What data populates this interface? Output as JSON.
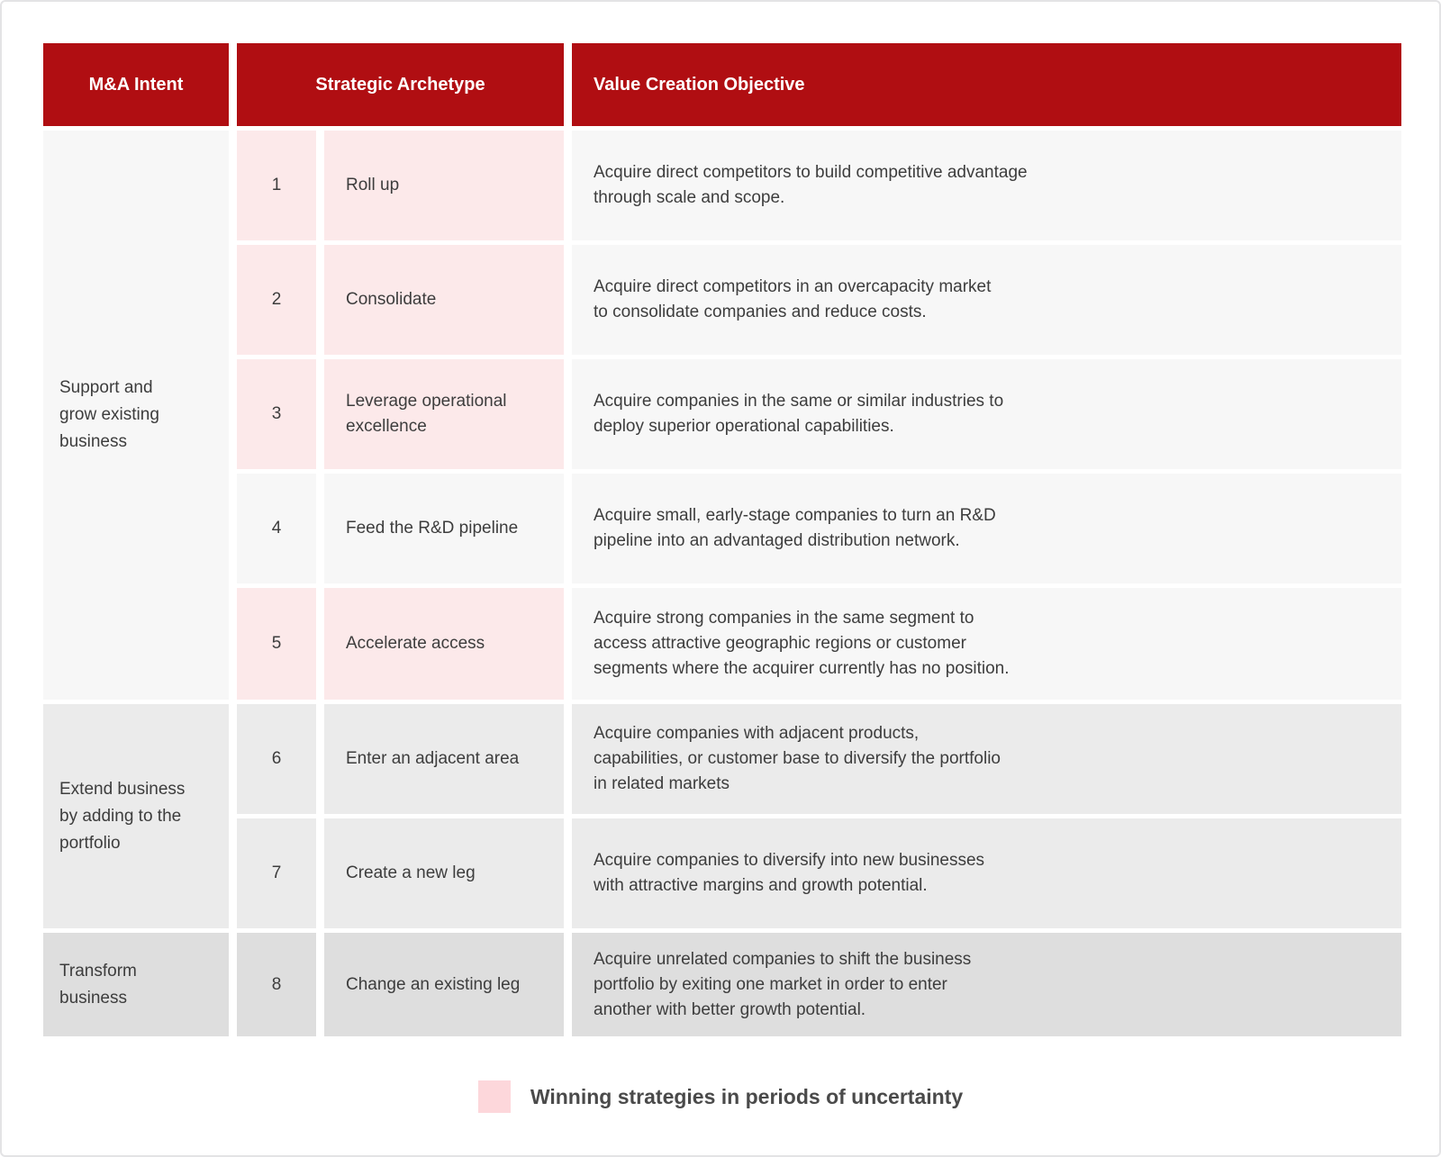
{
  "table": {
    "headers": [
      "M&A Intent",
      "Strategic Archetype",
      "Value Creation Objective"
    ],
    "groups": [
      {
        "label": "Support and\ngrow existing\nbusiness"
      },
      {
        "label": "Extend business\nby adding to the\nportfolio"
      },
      {
        "label": "Transform\nbusiness"
      }
    ],
    "rows": [
      {
        "num": "1",
        "archetype": "Roll up",
        "objective": "Acquire direct competitors to build competitive advantage\nthrough scale and scope.",
        "highlight": true
      },
      {
        "num": "2",
        "archetype": "Consolidate",
        "objective": "Acquire direct competitors in an overcapacity market\nto consolidate companies and reduce costs.",
        "highlight": true
      },
      {
        "num": "3",
        "archetype": "Leverage operational\nexcellence",
        "objective": "Acquire companies in the same or similar industries to\ndeploy superior operational capabilities.",
        "highlight": true
      },
      {
        "num": "4",
        "archetype": "Feed the R&D pipeline",
        "objective": "Acquire small, early-stage companies to turn an R&D\npipeline into an advantaged distribution network.",
        "highlight": false
      },
      {
        "num": "5",
        "archetype": "Accelerate access",
        "objective": "Acquire strong companies in the same segment to\naccess attractive geographic regions or customer\nsegments where the acquirer currently has no position.",
        "highlight": true
      },
      {
        "num": "6",
        "archetype": "Enter an adjacent area",
        "objective": "Acquire companies with adjacent products,\ncapabilities, or customer base to diversify the portfolio\nin related markets",
        "highlight": false
      },
      {
        "num": "7",
        "archetype": "Create a new leg",
        "objective": "Acquire companies to diversify into new businesses\nwith attractive margins and growth potential.",
        "highlight": false
      },
      {
        "num": "8",
        "archetype": "Change an existing leg",
        "objective": "Acquire unrelated companies to shift the business\nportfolio by exiting one market in order to enter\nanother with better growth potential.",
        "highlight": false
      }
    ]
  },
  "legend": {
    "label": "Winning strategies in periods of uncertainty"
  },
  "colors": {
    "header_red": "#B00E12",
    "winning_pink": "#FCE9EA",
    "legend_pink": "#FDD7DB",
    "band_light": "#F7F7F7",
    "band_mid": "#EBEBEB",
    "band_dark": "#DEDEDE",
    "text_dark": "#3D3D3D"
  }
}
